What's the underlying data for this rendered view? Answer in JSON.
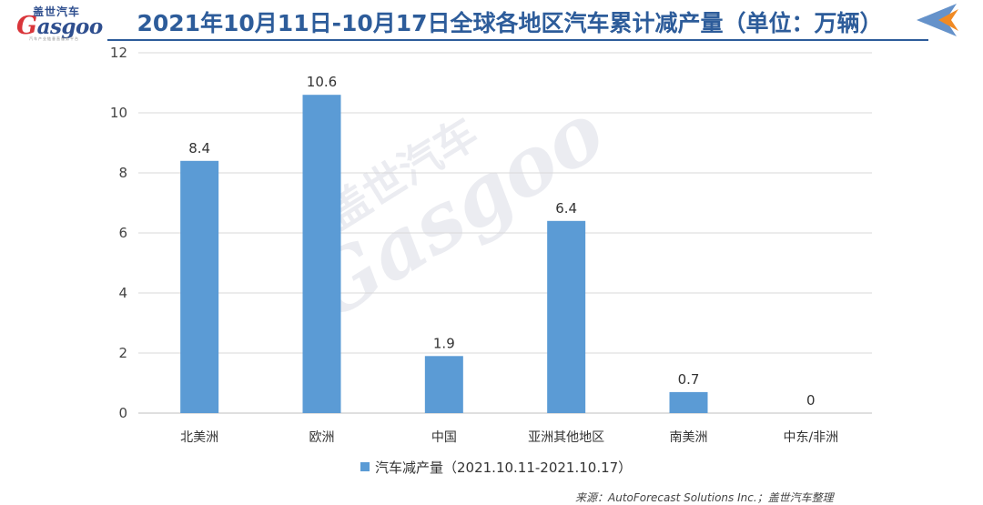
{
  "brand": {
    "logo_cn": "盖世汽车",
    "logo_en": "Gasgoo",
    "logo_tag": "汽车产业链垂直服务平台",
    "colors": {
      "brand_blue": "#2f4f8f",
      "brand_red": "#d9353a",
      "title_blue": "#2d5c9a",
      "arrow_blue": "#4a7fc1",
      "arrow_orange": "#f08a24"
    }
  },
  "header": {
    "title": "2021年10月11日-10月17日全球各地区汽车累计减产量（单位：万辆）",
    "corner_icon": "arrow-left-icon"
  },
  "watermark": {
    "cn": "盖世汽车",
    "en": "Gasgoo"
  },
  "footer": {
    "source": "来源：AutoForecast Solutions Inc.；盖世汽车整理"
  },
  "chart_data": {
    "type": "bar",
    "categories": [
      "北美洲",
      "欧洲",
      "中国",
      "亚洲其他地区",
      "南美洲",
      "中东/非洲"
    ],
    "series": [
      {
        "name": "汽车减产量（2021.10.11-2021.10.17）",
        "values": [
          8.4,
          10.6,
          1.9,
          6.4,
          0.7,
          0
        ],
        "data_labels": [
          "8.4",
          "10.6",
          "1.9",
          "6.4",
          "0.7",
          "0"
        ],
        "color": "#5b9bd5"
      }
    ],
    "title": "2021年10月11日-10月17日全球各地区汽车累计减产量（单位：万辆）",
    "ylim": [
      0,
      12
    ],
    "yticks": [
      "0",
      "2",
      "4",
      "6",
      "8",
      "10",
      "12"
    ],
    "grid": true,
    "legend": "bottom"
  }
}
